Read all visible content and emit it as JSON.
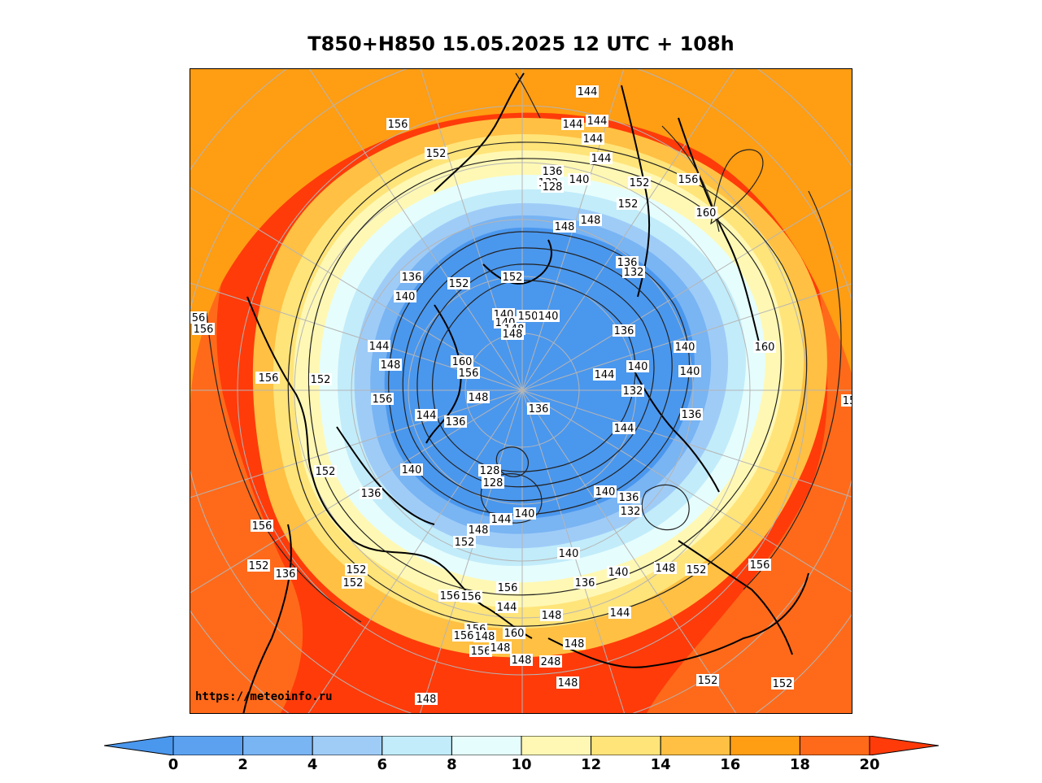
{
  "title": "T850+H850 15.05.2025 12 UTC + 108h",
  "watermark": "https://meteoinfo.ru",
  "colorbar": {
    "ticks": [
      "0",
      "2",
      "4",
      "6",
      "8",
      "10",
      "12",
      "14",
      "16",
      "18",
      "20"
    ],
    "colors": [
      "#4a97ee",
      "#5ba1f0",
      "#79b4f3",
      "#9fccf7",
      "#c2ecfa",
      "#e6fdfd",
      "#fff8b4",
      "#ffe47a",
      "#ffc043",
      "#ff9d13",
      "#ff6a1a",
      "#ff3b0a"
    ]
  },
  "contour_labels": [
    "144",
    "144",
    "144",
    "144",
    "144",
    "156",
    "152",
    "136",
    "132",
    "128",
    "140",
    "144",
    "152",
    "156",
    "160",
    "152",
    "148",
    "148",
    "136",
    "132",
    "136",
    "152",
    "152",
    "140",
    "140",
    "150",
    "140",
    "148",
    "140",
    "148",
    "136",
    "56",
    "156",
    "156",
    "144",
    "148",
    "160",
    "156",
    "160",
    "140",
    "140",
    "144",
    "140",
    "156",
    "152",
    "156",
    "148",
    "136",
    "136",
    "144",
    "144",
    "136",
    "132",
    "15",
    "128",
    "128",
    "140",
    "152",
    "136",
    "140",
    "144",
    "140",
    "136",
    "132",
    "156",
    "148",
    "152",
    "152",
    "136",
    "140",
    "140",
    "148",
    "152",
    "152",
    "152",
    "156",
    "136",
    "156",
    "156",
    "144",
    "148",
    "144",
    "156",
    "156",
    "148",
    "160",
    "148",
    "156",
    "156",
    "148",
    "148",
    "248",
    "148",
    "148",
    "152",
    "152"
  ]
}
